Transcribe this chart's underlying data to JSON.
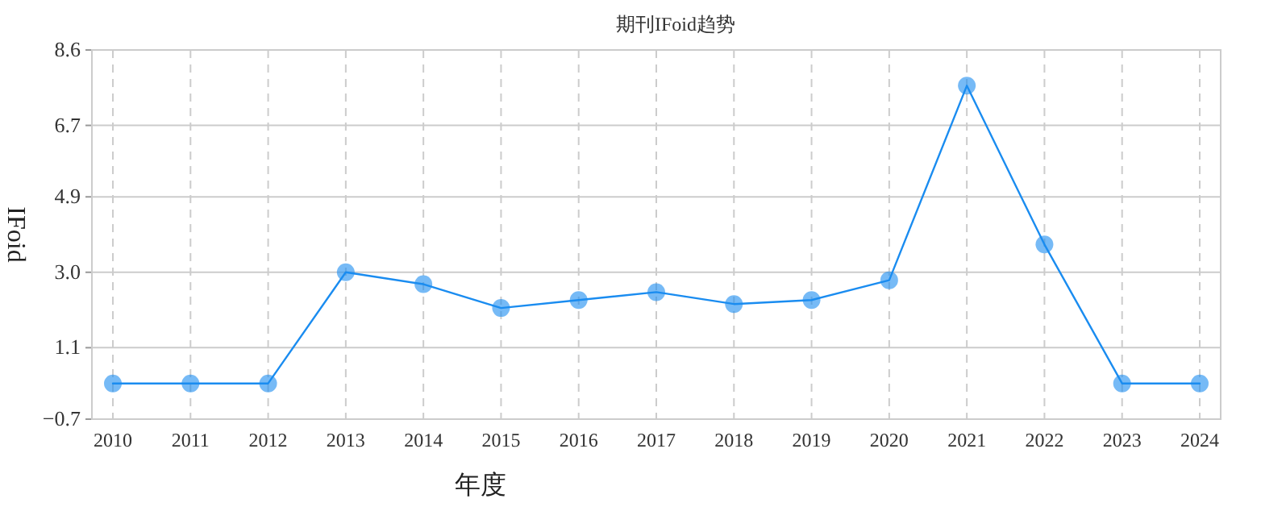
{
  "chart_data": {
    "type": "line",
    "title": "期刊IFoid趋势",
    "xlabel": "年度",
    "ylabel": "IFoid",
    "categories": [
      "2010",
      "2011",
      "2012",
      "2013",
      "2014",
      "2015",
      "2016",
      "2017",
      "2018",
      "2019",
      "2020",
      "2021",
      "2022",
      "2023",
      "2024"
    ],
    "series": [
      {
        "color": "#1a8cf0",
        "values": [
          0.2,
          0.2,
          0.2,
          3.0,
          2.7,
          2.1,
          2.3,
          2.5,
          2.2,
          2.3,
          2.8,
          7.7,
          3.7,
          0.2,
          0.2
        ]
      }
    ],
    "ylim": [
      -0.7,
      8.6
    ],
    "yticks": [
      -0.7,
      1.1,
      {
        "value": 3,
        "label": "3.0"
      },
      4.9,
      6.7,
      8.6
    ],
    "grid": true,
    "marker": "circle",
    "line_style": "solid"
  }
}
